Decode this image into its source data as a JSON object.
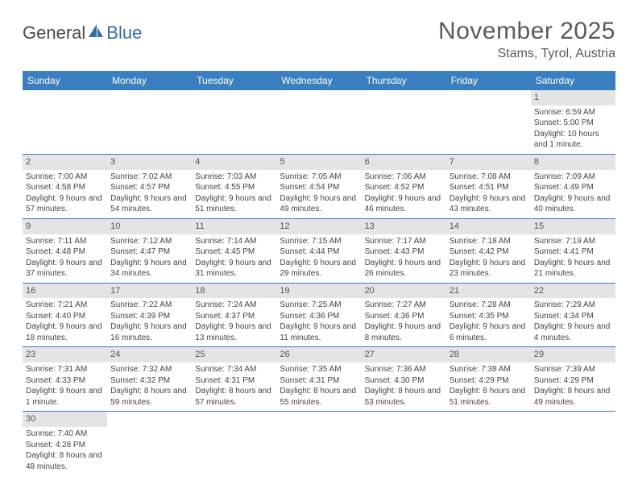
{
  "logo": {
    "text1": "General",
    "text2": "Blue"
  },
  "title": "November 2025",
  "location": "Stams, Tyrol, Austria",
  "colors": {
    "header_bg": "#3a7fbf",
    "header_text": "#ffffff",
    "daynum_bg": "#e4e4e4",
    "rule": "#3a7fbf",
    "logo_accent": "#2f6fa8"
  },
  "weekdays": [
    "Sunday",
    "Monday",
    "Tuesday",
    "Wednesday",
    "Thursday",
    "Friday",
    "Saturday"
  ],
  "weeks": [
    [
      null,
      null,
      null,
      null,
      null,
      null,
      {
        "n": "1",
        "sr": "Sunrise: 6:59 AM",
        "ss": "Sunset: 5:00 PM",
        "dl": "Daylight: 10 hours and 1 minute."
      }
    ],
    [
      {
        "n": "2",
        "sr": "Sunrise: 7:00 AM",
        "ss": "Sunset: 4:58 PM",
        "dl": "Daylight: 9 hours and 57 minutes."
      },
      {
        "n": "3",
        "sr": "Sunrise: 7:02 AM",
        "ss": "Sunset: 4:57 PM",
        "dl": "Daylight: 9 hours and 54 minutes."
      },
      {
        "n": "4",
        "sr": "Sunrise: 7:03 AM",
        "ss": "Sunset: 4:55 PM",
        "dl": "Daylight: 9 hours and 51 minutes."
      },
      {
        "n": "5",
        "sr": "Sunrise: 7:05 AM",
        "ss": "Sunset: 4:54 PM",
        "dl": "Daylight: 9 hours and 49 minutes."
      },
      {
        "n": "6",
        "sr": "Sunrise: 7:06 AM",
        "ss": "Sunset: 4:52 PM",
        "dl": "Daylight: 9 hours and 46 minutes."
      },
      {
        "n": "7",
        "sr": "Sunrise: 7:08 AM",
        "ss": "Sunset: 4:51 PM",
        "dl": "Daylight: 9 hours and 43 minutes."
      },
      {
        "n": "8",
        "sr": "Sunrise: 7:09 AM",
        "ss": "Sunset: 4:49 PM",
        "dl": "Daylight: 9 hours and 40 minutes."
      }
    ],
    [
      {
        "n": "9",
        "sr": "Sunrise: 7:11 AM",
        "ss": "Sunset: 4:48 PM",
        "dl": "Daylight: 9 hours and 37 minutes."
      },
      {
        "n": "10",
        "sr": "Sunrise: 7:12 AM",
        "ss": "Sunset: 4:47 PM",
        "dl": "Daylight: 9 hours and 34 minutes."
      },
      {
        "n": "11",
        "sr": "Sunrise: 7:14 AM",
        "ss": "Sunset: 4:45 PM",
        "dl": "Daylight: 9 hours and 31 minutes."
      },
      {
        "n": "12",
        "sr": "Sunrise: 7:15 AM",
        "ss": "Sunset: 4:44 PM",
        "dl": "Daylight: 9 hours and 29 minutes."
      },
      {
        "n": "13",
        "sr": "Sunrise: 7:17 AM",
        "ss": "Sunset: 4:43 PM",
        "dl": "Daylight: 9 hours and 26 minutes."
      },
      {
        "n": "14",
        "sr": "Sunrise: 7:18 AM",
        "ss": "Sunset: 4:42 PM",
        "dl": "Daylight: 9 hours and 23 minutes."
      },
      {
        "n": "15",
        "sr": "Sunrise: 7:19 AM",
        "ss": "Sunset: 4:41 PM",
        "dl": "Daylight: 9 hours and 21 minutes."
      }
    ],
    [
      {
        "n": "16",
        "sr": "Sunrise: 7:21 AM",
        "ss": "Sunset: 4:40 PM",
        "dl": "Daylight: 9 hours and 18 minutes."
      },
      {
        "n": "17",
        "sr": "Sunrise: 7:22 AM",
        "ss": "Sunset: 4:39 PM",
        "dl": "Daylight: 9 hours and 16 minutes."
      },
      {
        "n": "18",
        "sr": "Sunrise: 7:24 AM",
        "ss": "Sunset: 4:37 PM",
        "dl": "Daylight: 9 hours and 13 minutes."
      },
      {
        "n": "19",
        "sr": "Sunrise: 7:25 AM",
        "ss": "Sunset: 4:36 PM",
        "dl": "Daylight: 9 hours and 11 minutes."
      },
      {
        "n": "20",
        "sr": "Sunrise: 7:27 AM",
        "ss": "Sunset: 4:36 PM",
        "dl": "Daylight: 9 hours and 8 minutes."
      },
      {
        "n": "21",
        "sr": "Sunrise: 7:28 AM",
        "ss": "Sunset: 4:35 PM",
        "dl": "Daylight: 9 hours and 6 minutes."
      },
      {
        "n": "22",
        "sr": "Sunrise: 7:29 AM",
        "ss": "Sunset: 4:34 PM",
        "dl": "Daylight: 9 hours and 4 minutes."
      }
    ],
    [
      {
        "n": "23",
        "sr": "Sunrise: 7:31 AM",
        "ss": "Sunset: 4:33 PM",
        "dl": "Daylight: 9 hours and 1 minute."
      },
      {
        "n": "24",
        "sr": "Sunrise: 7:32 AM",
        "ss": "Sunset: 4:32 PM",
        "dl": "Daylight: 8 hours and 59 minutes."
      },
      {
        "n": "25",
        "sr": "Sunrise: 7:34 AM",
        "ss": "Sunset: 4:31 PM",
        "dl": "Daylight: 8 hours and 57 minutes."
      },
      {
        "n": "26",
        "sr": "Sunrise: 7:35 AM",
        "ss": "Sunset: 4:31 PM",
        "dl": "Daylight: 8 hours and 55 minutes."
      },
      {
        "n": "27",
        "sr": "Sunrise: 7:36 AM",
        "ss": "Sunset: 4:30 PM",
        "dl": "Daylight: 8 hours and 53 minutes."
      },
      {
        "n": "28",
        "sr": "Sunrise: 7:38 AM",
        "ss": "Sunset: 4:29 PM",
        "dl": "Daylight: 8 hours and 51 minutes."
      },
      {
        "n": "29",
        "sr": "Sunrise: 7:39 AM",
        "ss": "Sunset: 4:29 PM",
        "dl": "Daylight: 8 hours and 49 minutes."
      }
    ],
    [
      {
        "n": "30",
        "sr": "Sunrise: 7:40 AM",
        "ss": "Sunset: 4:28 PM",
        "dl": "Daylight: 8 hours and 48 minutes."
      },
      null,
      null,
      null,
      null,
      null,
      null
    ]
  ]
}
